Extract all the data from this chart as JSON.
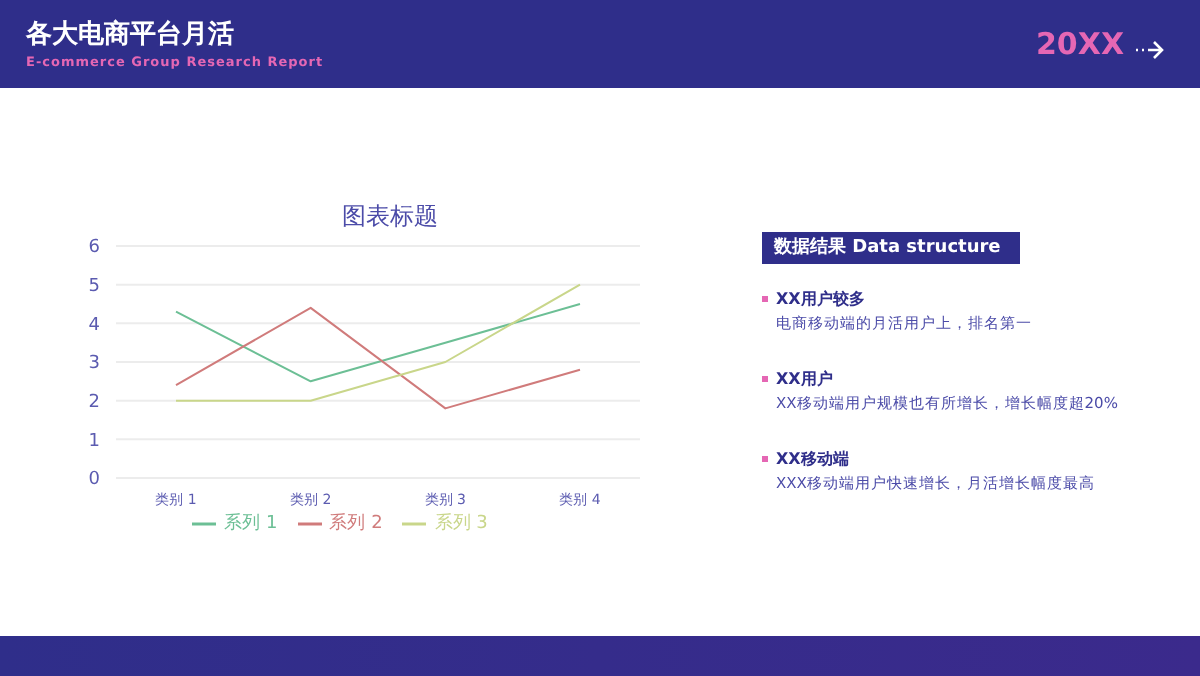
{
  "chart_data": {
    "type": "line",
    "title": "图表标题",
    "categories": [
      "类别 1",
      "类别 2",
      "类别 3",
      "类别 4"
    ],
    "series": [
      {
        "name": "系列 1",
        "color": "#6cbf95",
        "values": [
          4.3,
          2.5,
          3.5,
          4.5
        ]
      },
      {
        "name": "系列 2",
        "color": "#d07b7b",
        "values": [
          2.4,
          4.4,
          1.8,
          2.8
        ]
      },
      {
        "name": "系列 3",
        "color": "#c9d68a",
        "values": [
          2,
          2,
          3,
          5
        ]
      }
    ],
    "ylim": [
      0,
      6
    ],
    "yticks": [
      0,
      1,
      2,
      3,
      4,
      5,
      6
    ],
    "grid": "y",
    "legend": "bottom",
    "marker": "none",
    "line_style": "solid",
    "annotations": [
      "各大电商平台月活",
      "E-commerce Group Research Report",
      "20XX",
      "数据结果 Data structure",
      "XX用户较多",
      "电商移动端的月活用户上，排名第一",
      "XX用户",
      "XX移动端用户规模也有所增长，增长幅度超20%",
      "XX移动端",
      "XXX移动端用户快速增长，月活增长幅度最高"
    ]
  }
}
